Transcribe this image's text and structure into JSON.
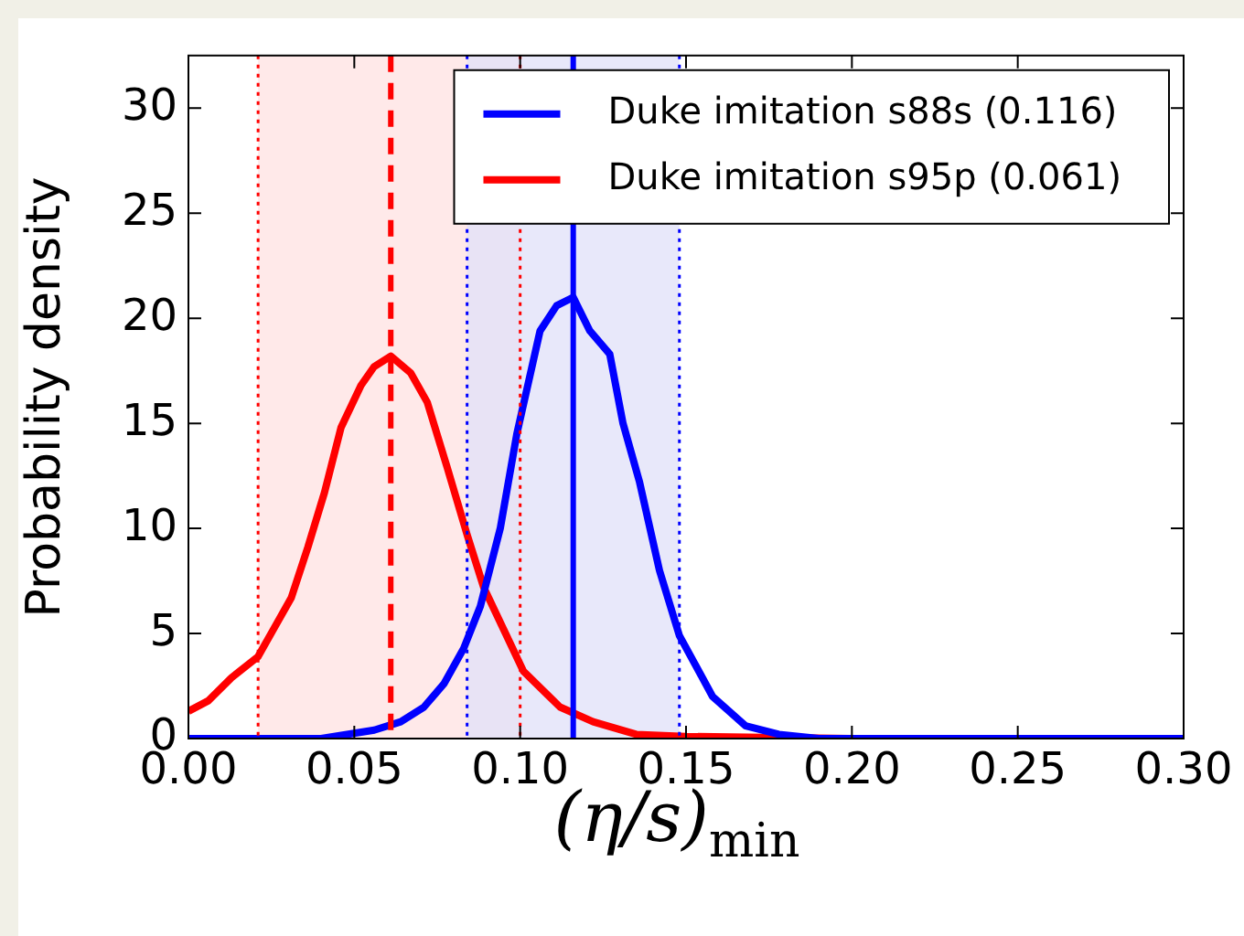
{
  "chart_data": {
    "type": "line",
    "xlabel": "(η/s)$_{min}$",
    "ylabel": "Probability density",
    "xlim": [
      0,
      0.3
    ],
    "xticks": [
      {
        "value": 0,
        "label": "0.00"
      },
      {
        "value": 0.05,
        "label": "0.05"
      },
      {
        "value": 0.1,
        "label": "0.10"
      },
      {
        "value": 0.15,
        "label": "0.15"
      },
      {
        "value": 0.2,
        "label": "0.20"
      },
      {
        "value": 0.25,
        "label": "0.25"
      },
      {
        "value": 0.3,
        "label": "0.30"
      }
    ],
    "ylim": [
      0,
      32.5
    ],
    "yticks": [
      0,
      5,
      10,
      15,
      20,
      25,
      30
    ],
    "grid": false,
    "legend": "top right",
    "marker": "none",
    "line_style": "solid",
    "series": [
      {
        "name": "Duke imitation s88s (0.116)",
        "color": "#0000ff",
        "x": [
          0,
          0.04,
          0.056,
          0.064,
          0.071,
          0.077,
          0.083,
          0.088,
          0.094,
          0.099,
          0.106,
          0.111,
          0.116,
          0.121,
          0.127,
          0.131,
          0.136,
          0.142,
          0.148,
          0.158,
          0.168,
          0.178,
          0.19,
          0.2,
          0.3
        ],
        "values": [
          0,
          0,
          0.4,
          0.8,
          1.5,
          2.6,
          4.3,
          6.3,
          10,
          14.5,
          19.4,
          20.6,
          21,
          19.4,
          18.3,
          15,
          12.2,
          8,
          4.9,
          2,
          0.6,
          0.2,
          0,
          0,
          0
        ]
      },
      {
        "name": "Duke imitation s95p (0.061)",
        "color": "#ff0000",
        "x": [
          0,
          0.006,
          0.013,
          0.021,
          0.026,
          0.031,
          0.036,
          0.041,
          0.046,
          0.052,
          0.056,
          0.061,
          0.067,
          0.072,
          0.078,
          0.084,
          0.089,
          0.095,
          0.101,
          0.112,
          0.122,
          0.135,
          0.15,
          0.2,
          0.3
        ],
        "values": [
          1.3,
          1.8,
          2.9,
          3.9,
          5.3,
          6.7,
          9.1,
          11.7,
          14.8,
          16.8,
          17.7,
          18.2,
          17.4,
          16,
          12.9,
          9.7,
          7.2,
          5.2,
          3.2,
          1.5,
          0.8,
          0.2,
          0.1,
          0,
          0
        ]
      }
    ],
    "bands": [
      {
        "axis": "x",
        "from": 0.021,
        "to": 0.1,
        "color": "#ffe1e1"
      },
      {
        "axis": "x",
        "from": 0.084,
        "to": 0.148,
        "color": "#e0e0f8"
      }
    ],
    "ref_lines": [
      {
        "axis": "x",
        "value": 0.021,
        "color": "#ff0000",
        "line_style": "dotted"
      },
      {
        "axis": "x",
        "value": 0.061,
        "color": "#ff0000",
        "line_style": "dashed"
      },
      {
        "axis": "x",
        "value": 0.1,
        "color": "#ff0000",
        "line_style": "dotted"
      },
      {
        "axis": "x",
        "value": 0.084,
        "color": "#0000ff",
        "line_style": "dotted"
      },
      {
        "axis": "x",
        "value": 0.116,
        "color": "#0000ff",
        "line_style": "solid"
      },
      {
        "axis": "x",
        "value": 0.148,
        "color": "#0000ff",
        "line_style": "dotted"
      }
    ]
  }
}
